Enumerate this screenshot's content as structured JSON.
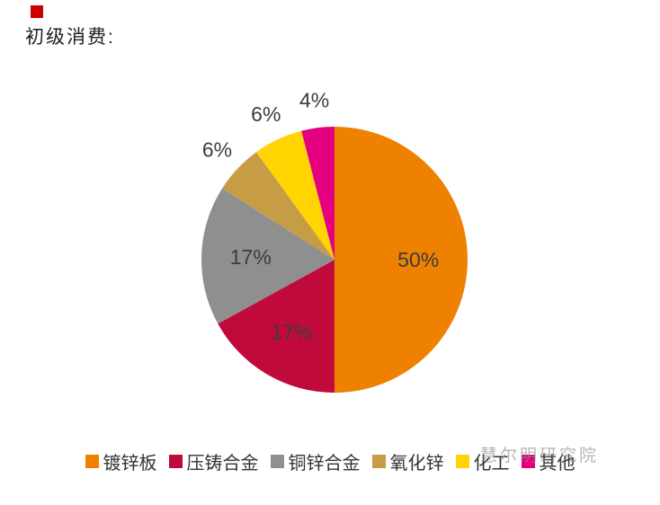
{
  "title": {
    "text": "初级消费:",
    "bullet_color": "#cb0000"
  },
  "chart_data": {
    "type": "pie",
    "title": "初级消费",
    "legend_position": "bottom",
    "direction": "clockwise",
    "start_angle_deg": 0,
    "slices": [
      {
        "label": "镀锌板",
        "value": 50,
        "pct_label": "50%",
        "color": "#EE8100",
        "label_inside": true
      },
      {
        "label": "压铸合金",
        "value": 17,
        "pct_label": "17%",
        "color": "#C00A3C",
        "label_inside": true,
        "label_color": "#82152f"
      },
      {
        "label": "铜锌合金",
        "value": 17,
        "pct_label": "17%",
        "color": "#8F8F8F",
        "label_inside": true
      },
      {
        "label": "氧化锌",
        "value": 6,
        "pct_label": "6%",
        "color": "#C69C45",
        "label_inside": false
      },
      {
        "label": "化工",
        "value": 6,
        "pct_label": "6%",
        "color": "#FFD400",
        "label_inside": false
      },
      {
        "label": "其他",
        "value": 4,
        "pct_label": "4%",
        "color": "#E4007F",
        "label_inside": false
      }
    ]
  },
  "legend": {
    "items": [
      "镀锌板",
      "压铸合金",
      "铜锌合金",
      "氧化锌",
      "化工",
      "其他"
    ]
  },
  "watermark": {
    "text": "慧尔明研究院"
  }
}
